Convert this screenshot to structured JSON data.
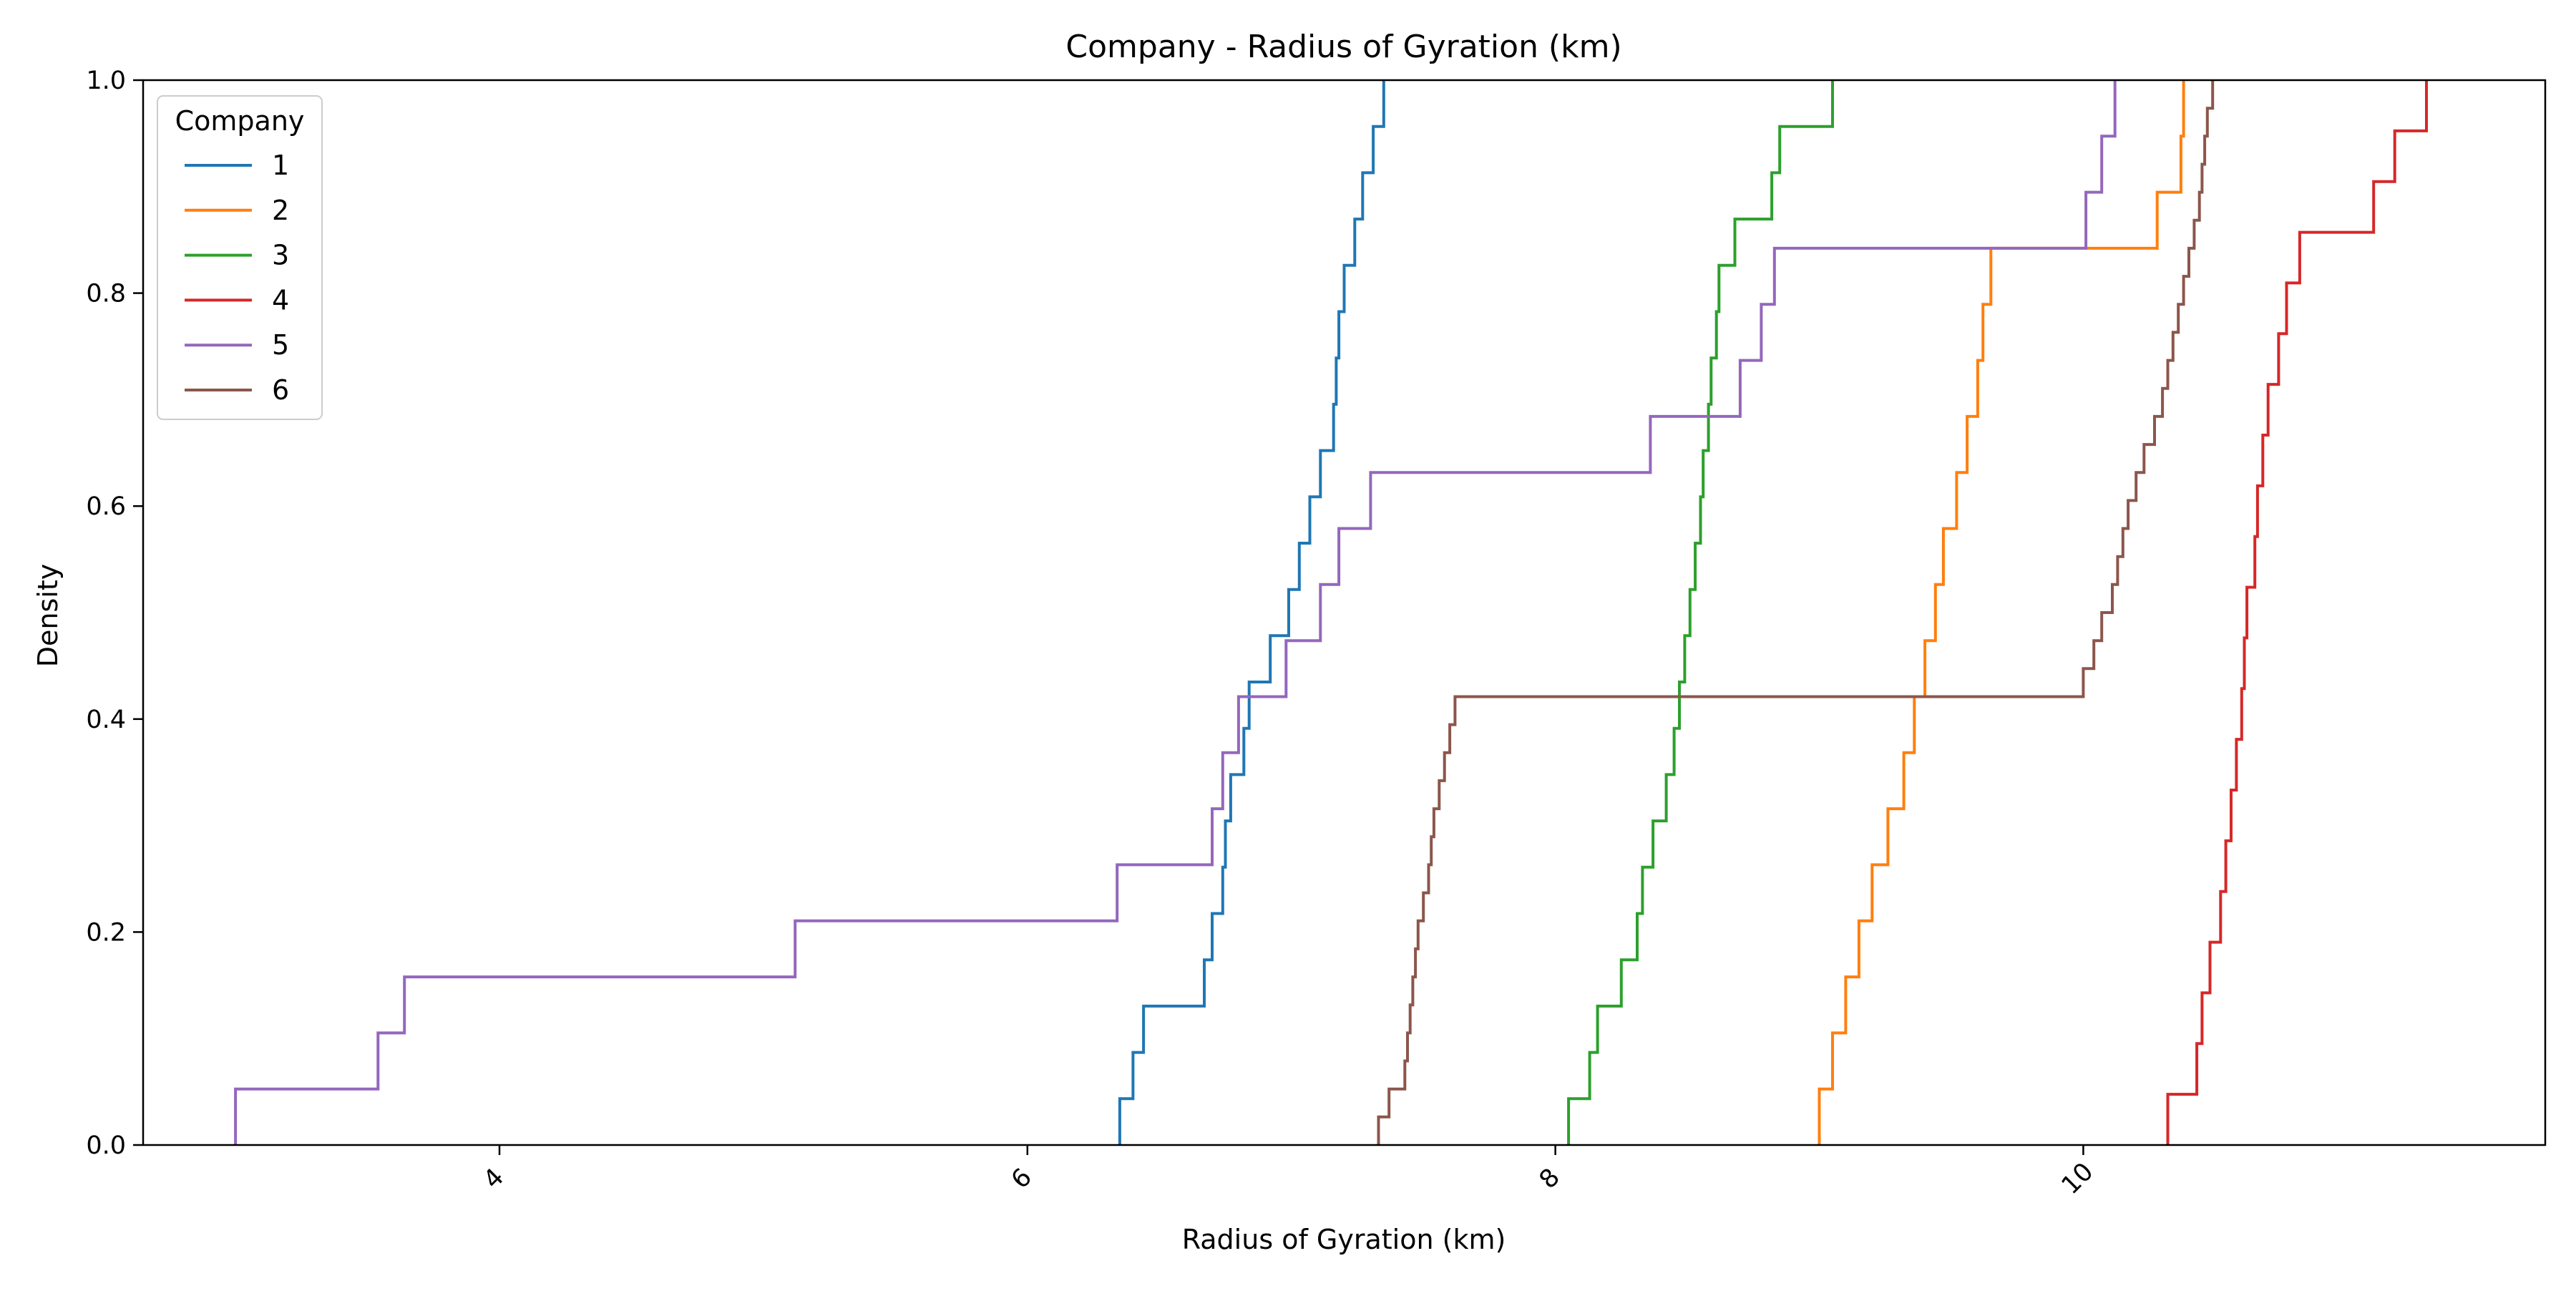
{
  "chart_data": {
    "type": "line",
    "subtype": "ecdf-step",
    "title": "Company - Radius of Gyration (km)",
    "xlabel": "Radius of Gyration (km)",
    "ylabel": "Density",
    "xlim": [
      2.65,
      11.75
    ],
    "ylim": [
      0.0,
      1.0
    ],
    "xticks": [
      4,
      6,
      8,
      10
    ],
    "xtick_labels": [
      "4",
      "6",
      "8",
      "10"
    ],
    "yticks": [
      0.0,
      0.2,
      0.4,
      0.6,
      0.8,
      1.0
    ],
    "ytick_labels": [
      "0.0",
      "0.2",
      "0.4",
      "0.6",
      "0.8",
      "1.0"
    ],
    "legend": {
      "title": "Company",
      "placement": "top-left"
    },
    "grid": false,
    "series": [
      {
        "name": "1",
        "color": "#1f77b4",
        "x": [
          6.35,
          6.4,
          6.44,
          6.67,
          6.7,
          6.74,
          6.75,
          6.77,
          6.82,
          6.84,
          6.92,
          6.99,
          7.03,
          7.07,
          7.11,
          7.16,
          7.17,
          7.18,
          7.2,
          7.24,
          7.27,
          7.31,
          7.35
        ]
      },
      {
        "name": "2",
        "color": "#ff7f0e",
        "x": [
          9.0,
          9.05,
          9.1,
          9.15,
          9.2,
          9.26,
          9.32,
          9.36,
          9.4,
          9.44,
          9.47,
          9.52,
          9.56,
          9.6,
          9.62,
          9.65,
          10.28,
          10.37,
          10.38
        ]
      },
      {
        "name": "3",
        "color": "#2ca02c",
        "x": [
          8.05,
          8.13,
          8.16,
          8.25,
          8.31,
          8.33,
          8.37,
          8.42,
          8.45,
          8.47,
          8.49,
          8.51,
          8.53,
          8.55,
          8.56,
          8.58,
          8.59,
          8.61,
          8.62,
          8.68,
          8.82,
          8.85,
          9.05
        ]
      },
      {
        "name": "4",
        "color": "#d62728",
        "x": [
          10.32,
          10.43,
          10.45,
          10.48,
          10.52,
          10.54,
          10.56,
          10.58,
          10.6,
          10.61,
          10.62,
          10.65,
          10.66,
          10.68,
          10.7,
          10.74,
          10.77,
          10.82,
          11.1,
          11.18,
          11.3
        ]
      },
      {
        "name": "5",
        "color": "#9467bd",
        "x": [
          3.0,
          3.54,
          3.64,
          5.12,
          6.34,
          6.7,
          6.74,
          6.8,
          6.98,
          7.11,
          7.18,
          7.3,
          8.36,
          8.7,
          8.78,
          8.83,
          10.01,
          10.07,
          10.12
        ]
      },
      {
        "name": "6",
        "color": "#8c564b",
        "x": [
          7.33,
          7.37,
          7.43,
          7.44,
          7.45,
          7.46,
          7.47,
          7.48,
          7.5,
          7.52,
          7.53,
          7.54,
          7.56,
          7.58,
          7.6,
          7.62,
          10.0,
          10.04,
          10.07,
          10.11,
          10.13,
          10.15,
          10.17,
          10.2,
          10.23,
          10.27,
          10.3,
          10.32,
          10.34,
          10.36,
          10.38,
          10.4,
          10.42,
          10.44,
          10.45,
          10.46,
          10.47,
          10.49
        ]
      }
    ]
  }
}
